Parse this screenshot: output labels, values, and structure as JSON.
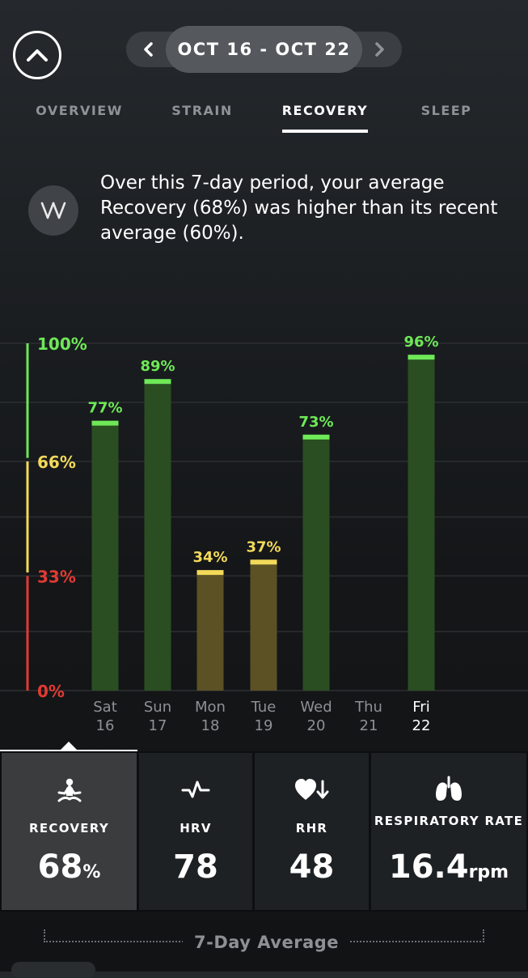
{
  "header": {
    "date_range": "OCT 16 - OCT 22"
  },
  "tabs": [
    {
      "label": "OVERVIEW",
      "active": false
    },
    {
      "label": "STRAIN",
      "active": false
    },
    {
      "label": "RECOVERY",
      "active": true
    },
    {
      "label": "SLEEP",
      "active": false
    }
  ],
  "insight": {
    "text": "Over this 7-day period, your average Recovery (68%) was higher than its recent average (60%)."
  },
  "chart_data": {
    "type": "bar",
    "categories": [
      "Sat 16",
      "Sun 17",
      "Mon 18",
      "Tue 19",
      "Wed 20",
      "Thu 21",
      "Fri 22"
    ],
    "days": [
      "Sat",
      "Sun",
      "Mon",
      "Tue",
      "Wed",
      "Thu",
      "Fri"
    ],
    "dates": [
      "16",
      "17",
      "18",
      "19",
      "20",
      "21",
      "22"
    ],
    "values": [
      77,
      89,
      34,
      37,
      73,
      null,
      96
    ],
    "value_labels": [
      "77%",
      "89%",
      "34%",
      "37%",
      "73%",
      "",
      "96%"
    ],
    "highlight_category": "Fri 22",
    "ylim": [
      0,
      100
    ],
    "y_ticks": [
      {
        "value": 100,
        "label": "100%"
      },
      {
        "value": 66,
        "label": "66%"
      },
      {
        "value": 33,
        "label": "33%"
      },
      {
        "value": 0,
        "label": "0%"
      }
    ],
    "zones": [
      {
        "from": 67,
        "to": 100,
        "color": "#6ee857"
      },
      {
        "from": 34,
        "to": 66,
        "color": "#f3d95a"
      },
      {
        "from": 0,
        "to": 33,
        "color": "#e13a32"
      }
    ],
    "grid": true
  },
  "stats": [
    {
      "label": "RECOVERY",
      "value": "68",
      "unit": "%",
      "icon": "meditation-icon",
      "active": true
    },
    {
      "label": "HRV",
      "value": "78",
      "unit": "",
      "icon": "heartbeat-line-icon",
      "active": false
    },
    {
      "label": "RHR",
      "value": "48",
      "unit": "",
      "icon": "heart-down-icon",
      "active": false
    },
    {
      "label": "RESPIRATORY RATE",
      "value": "16.4",
      "unit": "rpm",
      "icon": "lungs-icon",
      "active": false
    }
  ],
  "footer": {
    "average_label": "7-Day Average"
  },
  "colors": {
    "green": "#6ee857",
    "yellow": "#f3d95a",
    "red": "#e13a32",
    "green_fill": "#2a4e22",
    "yellow_fill": "#5b5125"
  }
}
